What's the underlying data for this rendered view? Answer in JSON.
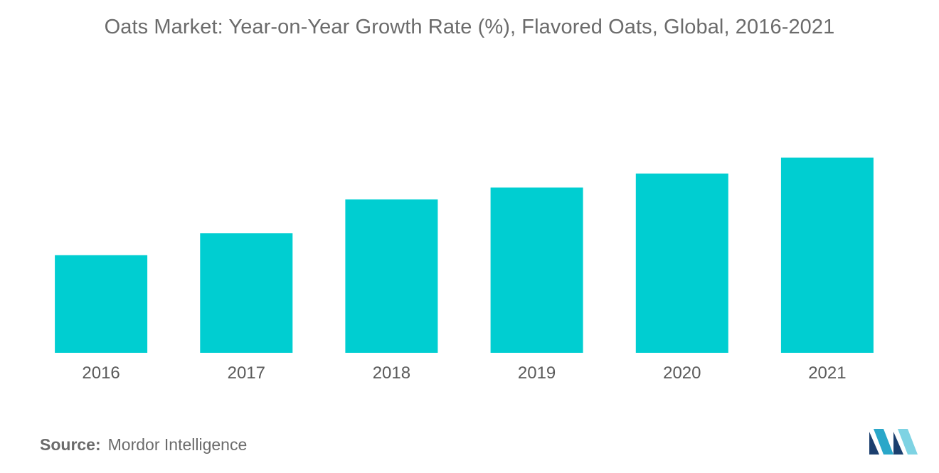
{
  "chart_data": {
    "type": "bar",
    "title": "Oats Market: Year-on-Year Growth Rate (%), Flavored Oats, Global, 2016-2021",
    "categories": [
      "2016",
      "2017",
      "2018",
      "2019",
      "2020",
      "2021"
    ],
    "values": [
      4.9,
      6.0,
      7.7,
      8.3,
      9.0,
      9.8
    ],
    "ylim": [
      0,
      12
    ],
    "grid": false,
    "legend": "none",
    "bar_color": "#00CED1"
  },
  "source": {
    "label": "Source:",
    "text": "Mordor Intelligence"
  },
  "logo": {
    "icon": "mordor-intelligence-logo",
    "colors": [
      "#1b3f6e",
      "#2aa7c9",
      "#7ed3e3"
    ]
  }
}
